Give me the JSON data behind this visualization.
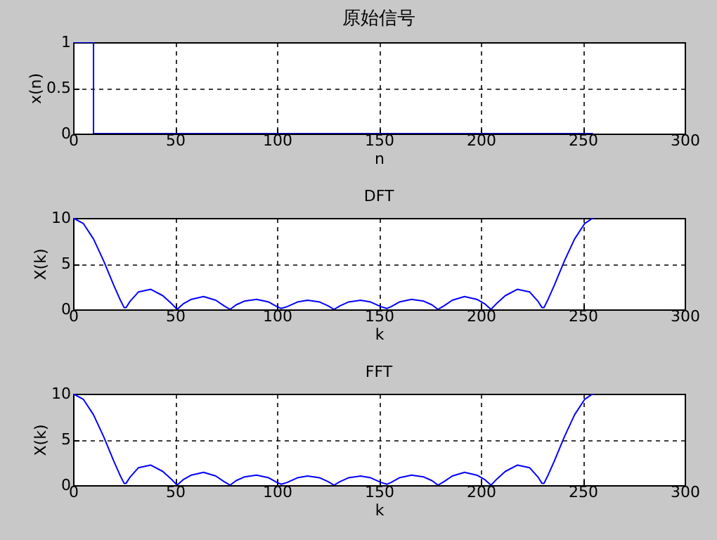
{
  "chart_data": [
    {
      "type": "line",
      "title": "原始信号",
      "xlabel": "n",
      "ylabel": "x(n)",
      "x": [
        0,
        0,
        10,
        10,
        255
      ],
      "series": [
        {
          "color": "#0000ff",
          "values": [
            0,
            1,
            1,
            0,
            0
          ]
        }
      ],
      "xlim": [
        0,
        300
      ],
      "xticks": [
        0,
        50,
        100,
        150,
        200,
        250,
        300
      ],
      "ylim": [
        0,
        1
      ],
      "yticks": [
        0,
        0.5,
        1
      ],
      "grid": true
    },
    {
      "type": "line",
      "title": "DFT",
      "xlabel": "k",
      "ylabel": "X(k)",
      "x": [
        0,
        5,
        10,
        15,
        20,
        23,
        25,
        26,
        28,
        32,
        38,
        44,
        48,
        51,
        54,
        58,
        64,
        70,
        74,
        77,
        80,
        84,
        90,
        96,
        100,
        102,
        105,
        110,
        115,
        121,
        125,
        128,
        131,
        135,
        141,
        146,
        151,
        154,
        156,
        160,
        166,
        172,
        176,
        179,
        182,
        186,
        192,
        198,
        202,
        205,
        208,
        212,
        218,
        224,
        228,
        230,
        231,
        233,
        236,
        241,
        246,
        251,
        255
      ],
      "series": [
        {
          "color": "#0000ff",
          "values": [
            10,
            9.4,
            7.7,
            5.3,
            2.6,
            1.1,
            0.2,
            0.2,
            0.9,
            1.9,
            2.2,
            1.5,
            0.7,
            0.0,
            0.6,
            1.1,
            1.4,
            1.0,
            0.4,
            0.0,
            0.5,
            0.9,
            1.1,
            0.8,
            0.3,
            0.1,
            0.3,
            0.8,
            1.0,
            0.8,
            0.4,
            0,
            0.4,
            0.8,
            1.0,
            0.8,
            0.3,
            0.1,
            0.3,
            0.8,
            1.1,
            0.9,
            0.5,
            0.0,
            0.4,
            1.0,
            1.4,
            1.1,
            0.6,
            0.0,
            0.7,
            1.5,
            2.2,
            1.9,
            0.9,
            0.2,
            0.2,
            1.1,
            2.6,
            5.3,
            7.7,
            9.4,
            10
          ]
        }
      ],
      "xlim": [
        0,
        300
      ],
      "xticks": [
        0,
        50,
        100,
        150,
        200,
        250,
        300
      ],
      "ylim": [
        0,
        10
      ],
      "yticks": [
        0,
        5,
        10
      ],
      "grid": true
    },
    {
      "type": "line",
      "title": "FFT",
      "xlabel": "k",
      "ylabel": "X(k)",
      "x": [
        0,
        5,
        10,
        15,
        20,
        23,
        25,
        26,
        28,
        32,
        38,
        44,
        48,
        51,
        54,
        58,
        64,
        70,
        74,
        77,
        80,
        84,
        90,
        96,
        100,
        102,
        105,
        110,
        115,
        121,
        125,
        128,
        131,
        135,
        141,
        146,
        151,
        154,
        156,
        160,
        166,
        172,
        176,
        179,
        182,
        186,
        192,
        198,
        202,
        205,
        208,
        212,
        218,
        224,
        228,
        230,
        231,
        233,
        236,
        241,
        246,
        251,
        255
      ],
      "series": [
        {
          "color": "#0000ff",
          "values": [
            10,
            9.4,
            7.7,
            5.3,
            2.6,
            1.1,
            0.2,
            0.2,
            0.9,
            1.9,
            2.2,
            1.5,
            0.7,
            0.0,
            0.6,
            1.1,
            1.4,
            1.0,
            0.4,
            0.0,
            0.5,
            0.9,
            1.1,
            0.8,
            0.3,
            0.1,
            0.3,
            0.8,
            1.0,
            0.8,
            0.4,
            0,
            0.4,
            0.8,
            1.0,
            0.8,
            0.3,
            0.1,
            0.3,
            0.8,
            1.1,
            0.9,
            0.5,
            0.0,
            0.4,
            1.0,
            1.4,
            1.1,
            0.6,
            0.0,
            0.7,
            1.5,
            2.2,
            1.9,
            0.9,
            0.2,
            0.2,
            1.1,
            2.6,
            5.3,
            7.7,
            9.4,
            10
          ]
        }
      ],
      "xlim": [
        0,
        300
      ],
      "xticks": [
        0,
        50,
        100,
        150,
        200,
        250,
        300
      ],
      "ylim": [
        0,
        10
      ],
      "yticks": [
        0,
        5,
        10
      ],
      "grid": true
    }
  ]
}
